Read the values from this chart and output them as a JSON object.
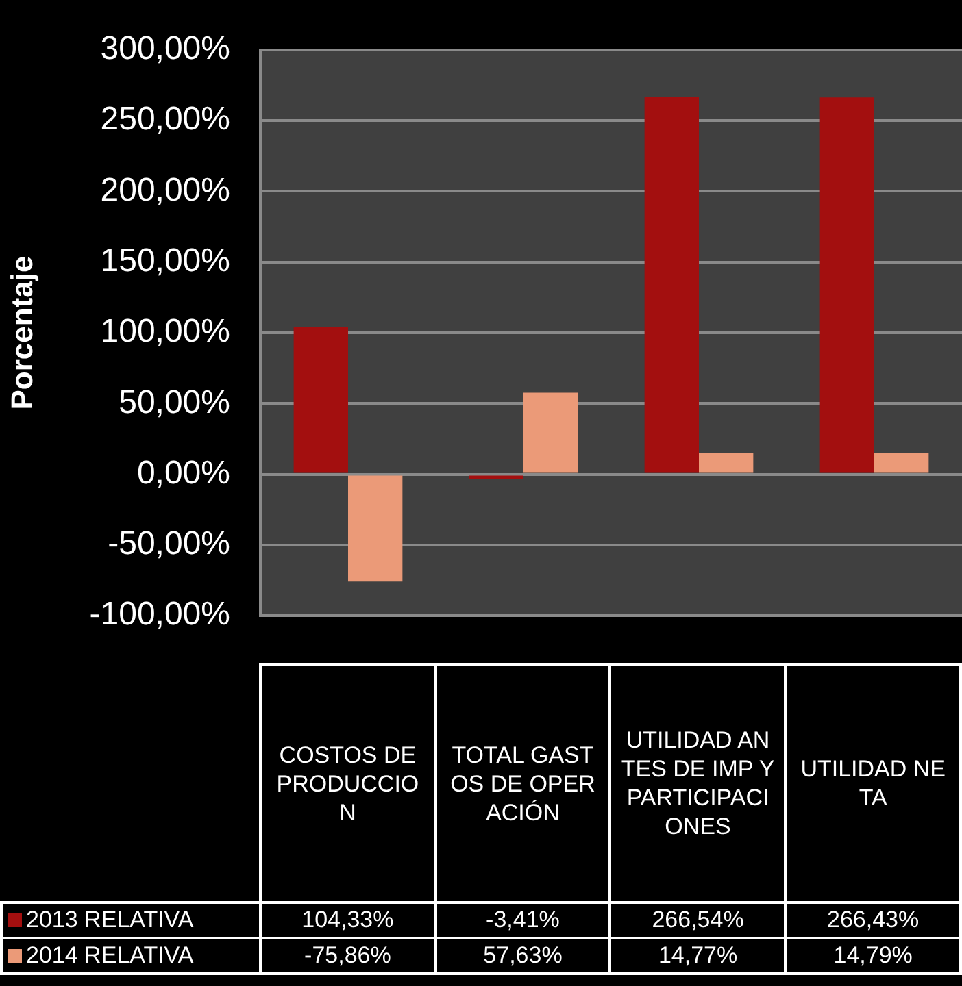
{
  "chart_data": {
    "type": "bar",
    "ylabel": "Porcentaje",
    "categories": [
      "COSTOS DE PRODUCCION",
      "TOTAL GASTOS DE OPERACIÓN",
      "UTILIDAD ANTES DE IMP Y PARTICIPACIONES",
      "UTILIDAD NETA"
    ],
    "series": [
      {
        "name": "2013 RELATIVA",
        "color": "#a30f0f",
        "values": [
          104.33,
          -3.41,
          266.54,
          266.43
        ],
        "value_labels": [
          "104,33%",
          "-3,41%",
          "266,54%",
          "266,43%"
        ]
      },
      {
        "name": "2014 RELATIVA",
        "color": "#eb9a78",
        "values": [
          -75.86,
          57.63,
          14.77,
          14.79
        ],
        "value_labels": [
          "-75,86%",
          "57,63%",
          "14,77%",
          "14,79%"
        ]
      }
    ],
    "ylim": [
      -100,
      300
    ],
    "yticks": [
      {
        "value": -100,
        "label": "-100,00%"
      },
      {
        "value": -50,
        "label": "-50,00%"
      },
      {
        "value": 0,
        "label": "0,00%"
      },
      {
        "value": 50,
        "label": "50,00%"
      },
      {
        "value": 100,
        "label": "100,00%"
      },
      {
        "value": 150,
        "label": "150,00%"
      },
      {
        "value": 200,
        "label": "200,00%"
      },
      {
        "value": 250,
        "label": "250,00%"
      },
      {
        "value": 300,
        "label": "300,00%"
      }
    ],
    "grid": "y",
    "legend": "bottom"
  }
}
